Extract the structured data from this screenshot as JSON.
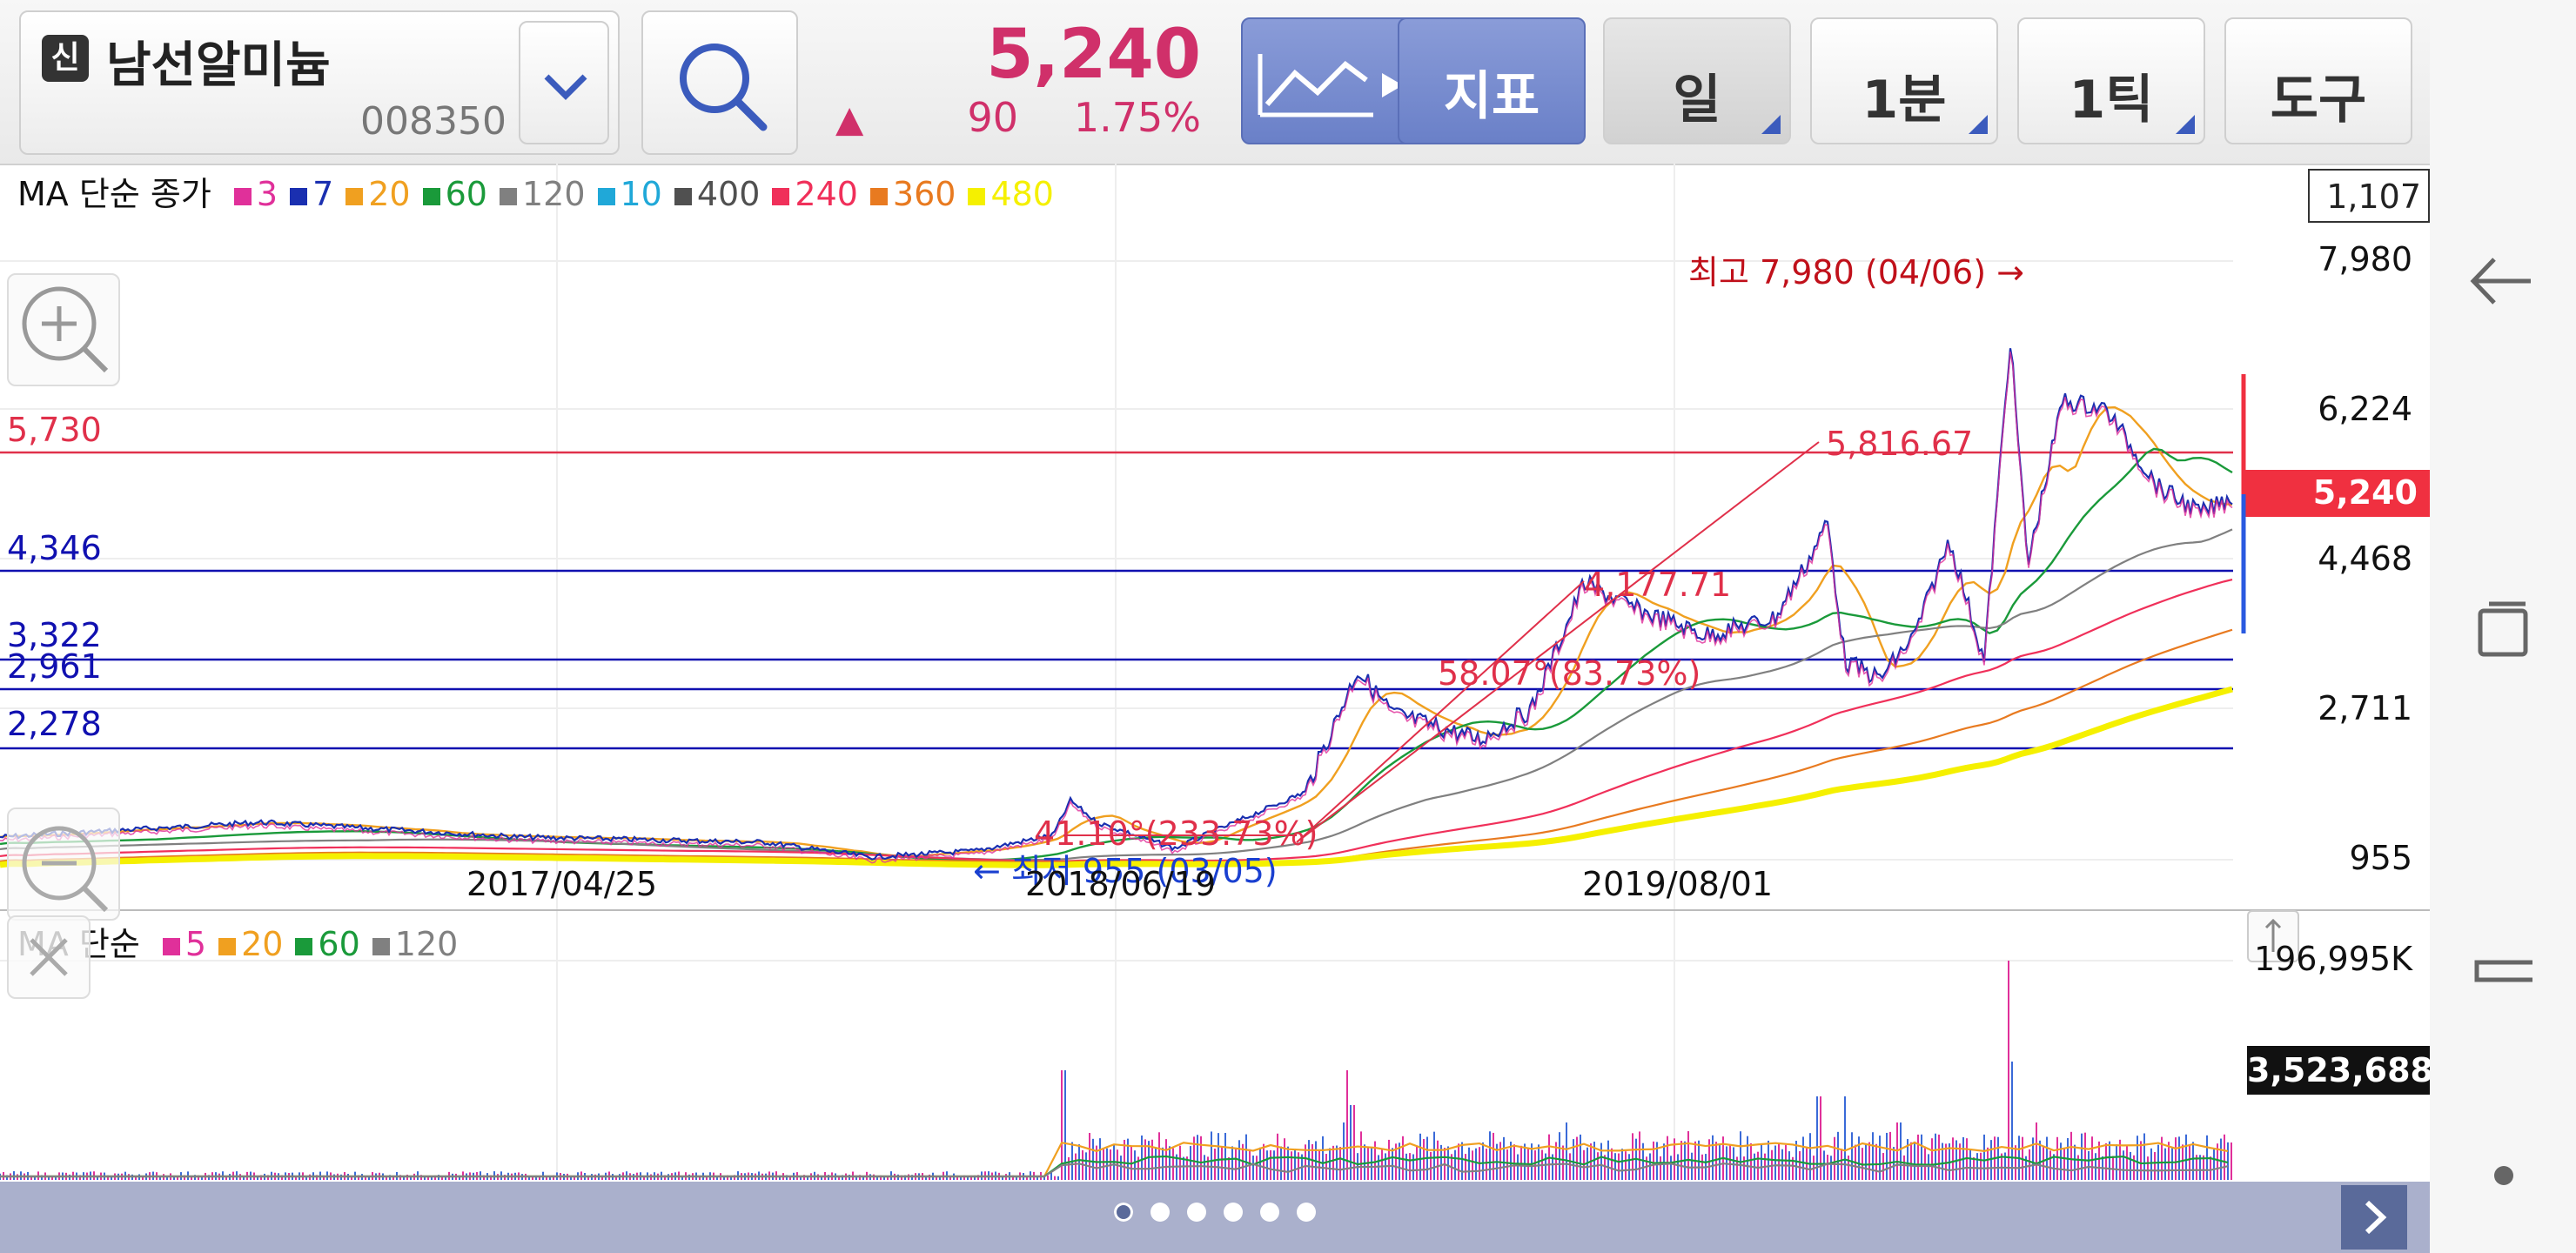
{
  "header": {
    "badge": "신",
    "stock_name": "남선알미늄",
    "stock_code": "008350",
    "price": "5,240",
    "change_arrow": "▲",
    "change": "90",
    "change_pct": "1.75%",
    "indicator_label": "지표",
    "period_label": "일",
    "minute_label": "1분",
    "tick_label": "1틱",
    "tools_label": "도구"
  },
  "price_legend": {
    "title": "MA 단순 종가",
    "items": [
      {
        "label": "3",
        "color": "#e0309a"
      },
      {
        "label": "7",
        "color": "#1a2fb0"
      },
      {
        "label": "20",
        "color": "#f0a020"
      },
      {
        "label": "60",
        "color": "#1a9a3a"
      },
      {
        "label": "120",
        "color": "#808080"
      },
      {
        "label": "10",
        "color": "#20a8d8"
      },
      {
        "label": "400",
        "color": "#505050"
      },
      {
        "label": "240",
        "color": "#f0305a"
      },
      {
        "label": "360",
        "color": "#e87a20"
      },
      {
        "label": "480",
        "color": "#f5f000"
      }
    ]
  },
  "volume_legend": {
    "title": "MA 단순",
    "items": [
      {
        "label": "5",
        "color": "#e0309a"
      },
      {
        "label": "20",
        "color": "#f0a020"
      },
      {
        "label": "60",
        "color": "#1a9a3a"
      },
      {
        "label": "120",
        "color": "#808080"
      }
    ]
  },
  "y_axis": {
    "top_box": "1,107",
    "ticks": [
      "7,980",
      "6,224",
      "4,468",
      "2,711",
      "955"
    ],
    "current": "5,240"
  },
  "volume_axis": {
    "max": "196,995K",
    "current": "3,523,688"
  },
  "x_axis": [
    "2017/04/25",
    "2018/06/19",
    "2019/08/01"
  ],
  "annotations": {
    "high": "최고 7,980 (04/06) →",
    "low": "← 최저 955 (03/05)",
    "fib_5816": "5,816.67",
    "fib_4177": "4,177.71",
    "angle1": "58.07°(83.73%)",
    "angle2": "41.10°(233.73%)"
  },
  "levels": [
    {
      "label": "5,730",
      "color": "#e0304a"
    },
    {
      "label": "4,346",
      "color": "#1010b0"
    },
    {
      "label": "3,322",
      "color": "#1010b0"
    },
    {
      "label": "2,961",
      "color": "#1010b0"
    },
    {
      "label": "2,278",
      "color": "#1010b0"
    }
  ],
  "colors": {
    "price_up": "#d0306a",
    "accent": "#6a80c8",
    "level_red": "#e0304a",
    "level_blue": "#1010b0"
  },
  "pager": {
    "pages": 6,
    "current": 0
  }
}
